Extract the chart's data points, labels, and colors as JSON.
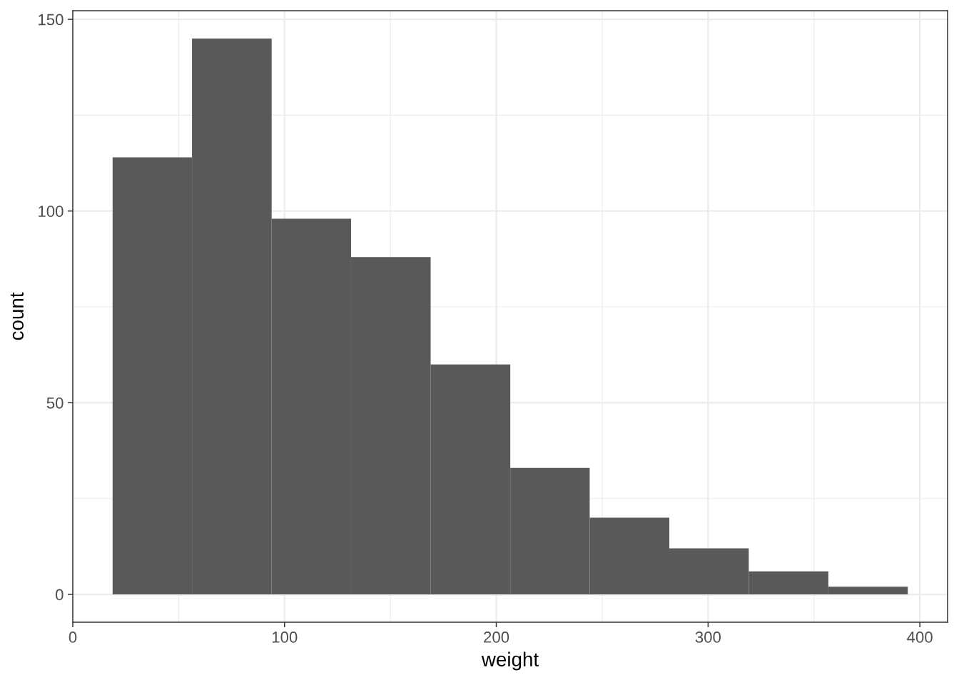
{
  "chart_data": {
    "type": "histogram",
    "xlabel": "weight",
    "ylabel": "count",
    "bins": [
      18.8,
      56.3,
      93.9,
      131.4,
      169.0,
      206.6,
      244.1,
      281.7,
      319.2,
      356.8,
      394.3
    ],
    "values": [
      114,
      145,
      98,
      88,
      60,
      33,
      20,
      12,
      6,
      2
    ],
    "color": "#595959",
    "xlim": [
      0,
      413.1
    ],
    "ylim": [
      -7.25,
      152.25
    ],
    "xticks": [
      0,
      100,
      200,
      300,
      400
    ],
    "yticks": [
      0,
      50,
      100,
      150
    ],
    "grid": true
  }
}
